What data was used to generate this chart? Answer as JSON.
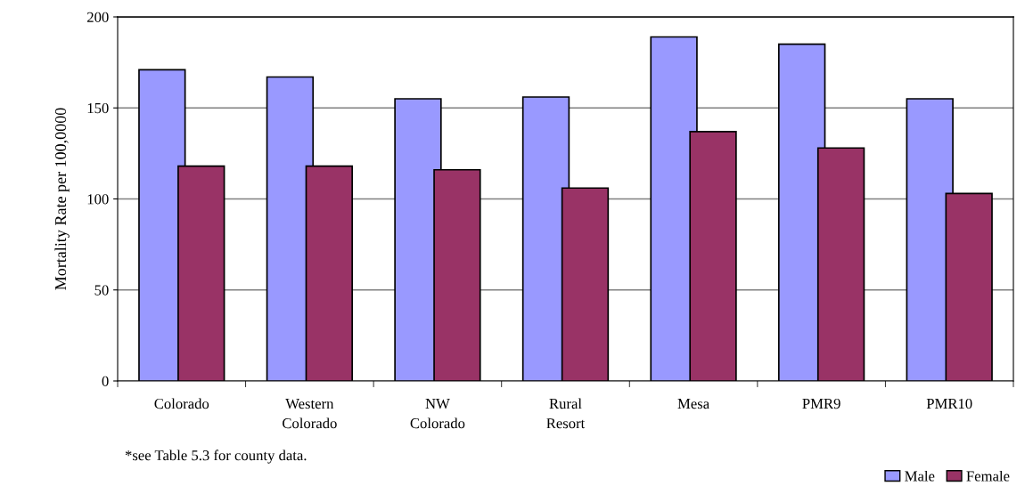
{
  "chart_data": {
    "type": "bar",
    "ylabel": "Mortality Rate per 100,0000",
    "categories": [
      "Colorado",
      "Western\nColorado",
      "NW\nColorado",
      "Rural\nResort",
      "Mesa",
      "PMR9",
      "PMR10"
    ],
    "series": [
      {
        "name": "Male",
        "color": "#9999ff",
        "values": [
          171,
          167,
          155,
          156,
          189,
          185,
          155
        ]
      },
      {
        "name": "Female",
        "color": "#993366",
        "values": [
          118,
          118,
          116,
          106,
          137,
          128,
          103
        ]
      }
    ],
    "ylim": [
      0,
      200
    ],
    "yticks": [
      0,
      50,
      100,
      150,
      200
    ],
    "grid": "y",
    "legend": "bottom right",
    "annotations": [
      "*see Table 5.3 for county data."
    ]
  }
}
